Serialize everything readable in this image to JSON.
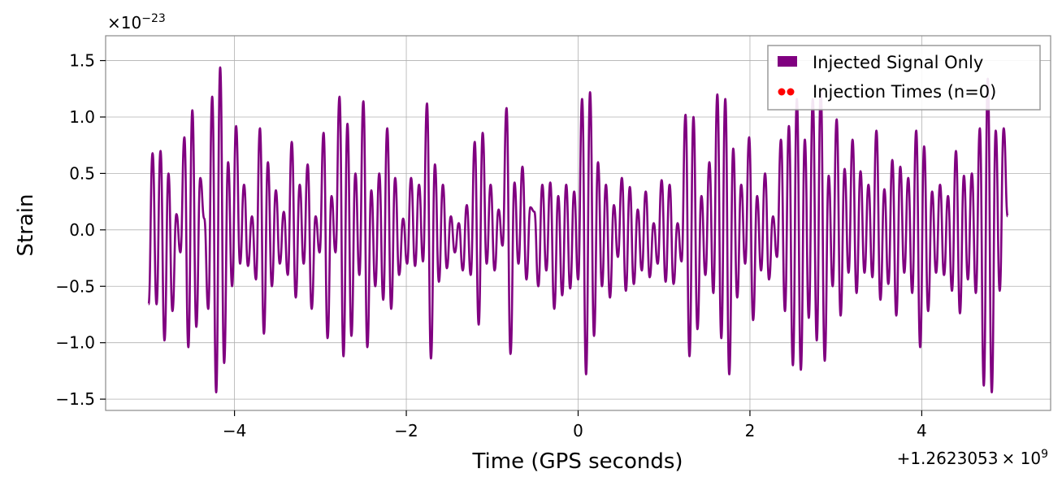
{
  "chart_data": {
    "type": "line",
    "title": "",
    "xlabel": "Time (GPS seconds)",
    "ylabel": "Strain",
    "x_offset_label": "+1.2623053",
    "x_offset_exp_base": "× 10",
    "x_offset_exp": "9",
    "y_scale_base": "×10",
    "y_scale_exp": "−23",
    "xlim": [
      -5.5,
      5.5
    ],
    "ylim": [
      -1.6,
      1.72
    ],
    "x_ticks": [
      -4,
      -2,
      0,
      2,
      4
    ],
    "x_tick_labels": [
      "−4",
      "−2",
      "0",
      "2",
      "4"
    ],
    "y_ticks": [
      -1.5,
      -1.0,
      -0.5,
      0.0,
      0.5,
      1.0,
      1.5
    ],
    "y_tick_labels": [
      "−1.5",
      "−1.0",
      "−0.5",
      "0.0",
      "0.5",
      "1.0",
      "1.5"
    ],
    "grid": true,
    "legend_position": "top-right",
    "legend": [
      {
        "label": "Injected Signal Only",
        "color": "#800080",
        "marker": "patch"
      },
      {
        "label": "Injection Times (n=0)",
        "color": "#ff0000",
        "marker": "dots"
      }
    ],
    "series": [
      {
        "name": "Injected Signal Only",
        "color": "#800080",
        "x_range": [
          -5.0,
          5.0
        ],
        "extrema_note": "oscillatory noise-like signal; listed values are successive local extrema",
        "y": [
          -0.66,
          0.68,
          -0.66,
          0.7,
          -0.98,
          0.5,
          -0.72,
          0.14,
          -0.2,
          0.82,
          -1.04,
          1.06,
          -0.86,
          0.46,
          0.1,
          -0.7,
          1.18,
          -1.44,
          1.44,
          -1.18,
          0.6,
          -0.5,
          0.92,
          -0.3,
          0.4,
          -0.32,
          0.12,
          -0.44,
          0.9,
          -0.92,
          0.6,
          -0.5,
          0.35,
          -0.3,
          0.16,
          -0.4,
          0.78,
          -0.6,
          0.4,
          -0.3,
          0.58,
          -0.7,
          0.12,
          -0.2,
          0.86,
          -0.96,
          0.3,
          -0.2,
          1.18,
          -1.12,
          0.94,
          -0.94,
          0.5,
          -0.4,
          1.14,
          -1.04,
          0.35,
          -0.5,
          0.5,
          -0.62,
          0.9,
          -0.7,
          0.46,
          -0.4,
          0.1,
          -0.3,
          0.46,
          -0.32,
          0.4,
          -0.28,
          1.12,
          -1.14,
          0.58,
          -0.46,
          0.4,
          -0.34,
          0.12,
          -0.2,
          0.06,
          -0.36,
          0.22,
          -0.4,
          0.78,
          -0.84,
          0.86,
          -0.3,
          0.4,
          -0.36,
          0.18,
          -0.14,
          1.08,
          -1.1,
          0.42,
          -0.3,
          0.56,
          -0.44,
          0.2,
          0.16,
          -0.5,
          0.4,
          -0.36,
          0.42,
          -0.7,
          0.3,
          -0.58,
          0.4,
          -0.52,
          0.34,
          -0.44,
          1.16,
          -1.28,
          1.22,
          -0.94,
          0.6,
          -0.5,
          0.4,
          -0.6,
          0.22,
          -0.24,
          0.46,
          -0.54,
          0.38,
          -0.48,
          0.18,
          -0.36,
          0.34,
          -0.42,
          0.06,
          -0.3,
          0.44,
          -0.46,
          0.4,
          -0.48,
          0.06,
          -0.28,
          1.02,
          -1.12,
          1.0,
          -0.88,
          0.3,
          -0.4,
          0.6,
          -0.56,
          1.2,
          -0.96,
          1.16,
          -1.28,
          0.72,
          -0.6,
          0.4,
          -0.3,
          0.82,
          -0.8,
          0.3,
          -0.36,
          0.5,
          -0.44,
          0.12,
          -0.24,
          0.8,
          -0.72,
          0.92,
          -1.2,
          1.16,
          -1.24,
          0.8,
          -0.78,
          1.16,
          -0.98,
          1.24,
          -1.16,
          0.48,
          -0.5,
          0.98,
          -0.76,
          0.54,
          -0.38,
          0.8,
          -0.56,
          0.52,
          -0.38,
          0.4,
          -0.42,
          0.88,
          -0.62,
          0.36,
          -0.48,
          0.62,
          -0.76,
          0.56,
          -0.38,
          0.46,
          -0.56,
          0.88,
          -1.04,
          0.74,
          -0.72,
          0.34,
          -0.38,
          0.4,
          -0.4,
          0.3,
          -0.54,
          0.7,
          -0.74,
          0.48,
          -0.44,
          0.5,
          -0.56,
          0.9,
          -1.38,
          1.34,
          -1.44,
          0.88,
          -0.54,
          0.9,
          0.12
        ]
      }
    ],
    "injection_times": []
  }
}
